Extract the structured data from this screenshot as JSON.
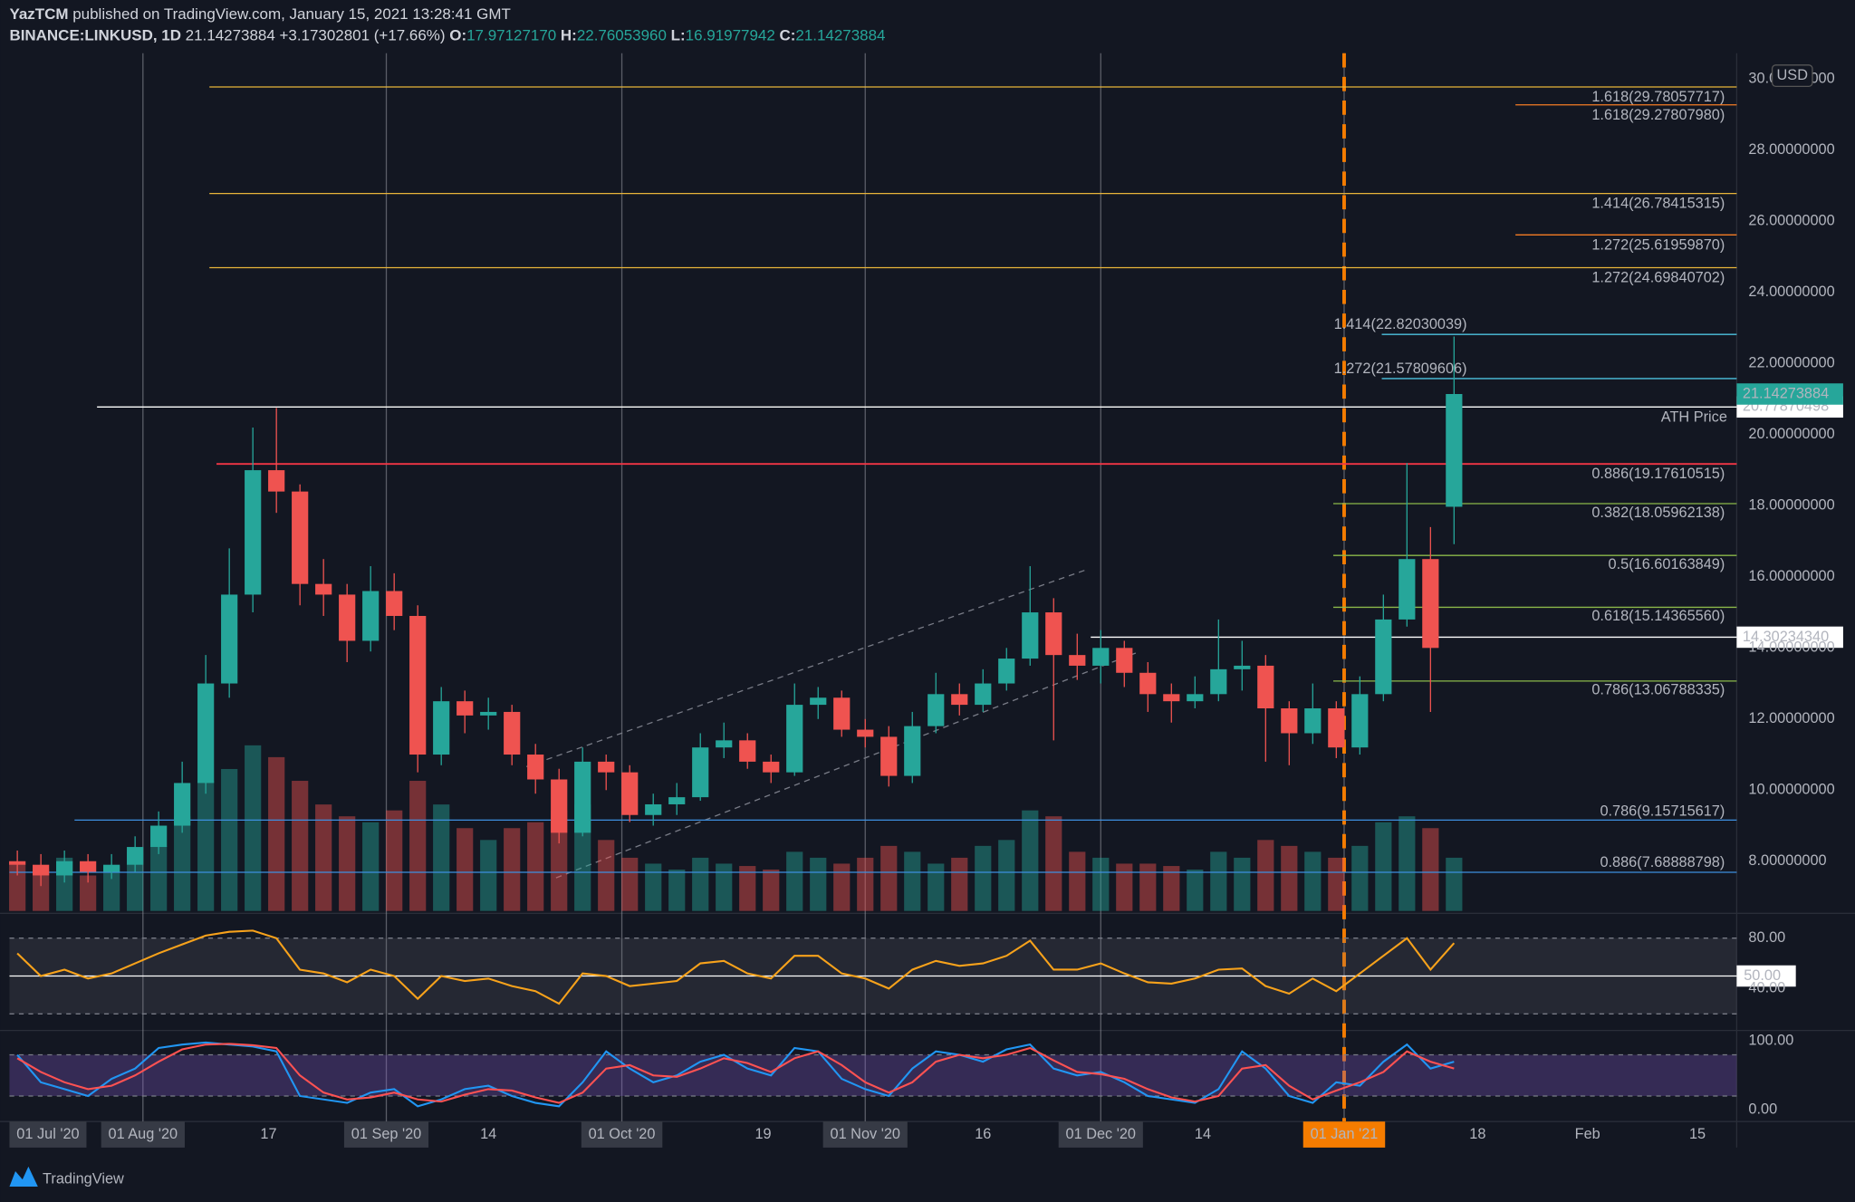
{
  "header": {
    "author": "YazTCM",
    "published": "published on TradingView.com, January 15, 2021 13:28:41 GMT",
    "symbol": "BINANCE:LINKUSD, 1D",
    "last": "21.14273884",
    "change": "+3.17302801 (+17.66%)",
    "o_label": "O:",
    "o": "17.97127170",
    "h_label": "H:",
    "h": "22.76053960",
    "l_label": "L:",
    "l": "16.91977942",
    "c_label": "C:",
    "c": "21.14273884"
  },
  "chart_data": {
    "type": "candlestick",
    "currency": "USD",
    "x": [
      "2020-07-16",
      "2020-07-19",
      "2020-07-22",
      "2020-07-25",
      "2020-07-28",
      "2020-07-31",
      "2020-08-03",
      "2020-08-06",
      "2020-08-09",
      "2020-08-12",
      "2020-08-15",
      "2020-08-18",
      "2020-08-21",
      "2020-08-24",
      "2020-08-27",
      "2020-08-30",
      "2020-09-02",
      "2020-09-05",
      "2020-09-08",
      "2020-09-11",
      "2020-09-14",
      "2020-09-17",
      "2020-09-20",
      "2020-09-23",
      "2020-09-26",
      "2020-09-29",
      "2020-10-02",
      "2020-10-05",
      "2020-10-08",
      "2020-10-11",
      "2020-10-14",
      "2020-10-17",
      "2020-10-20",
      "2020-10-23",
      "2020-10-26",
      "2020-10-29",
      "2020-11-01",
      "2020-11-04",
      "2020-11-07",
      "2020-11-10",
      "2020-11-13",
      "2020-11-16",
      "2020-11-19",
      "2020-11-22",
      "2020-11-25",
      "2020-11-28",
      "2020-12-01",
      "2020-12-04",
      "2020-12-07",
      "2020-12-10",
      "2020-12-13",
      "2020-12-16",
      "2020-12-19",
      "2020-12-22",
      "2020-12-25",
      "2020-12-28",
      "2020-12-31",
      "2021-01-03",
      "2021-01-06",
      "2021-01-09",
      "2021-01-12",
      "2021-01-15"
    ],
    "open": [
      8.0,
      7.9,
      7.6,
      8.0,
      7.7,
      7.9,
      8.4,
      9.0,
      10.2,
      13.0,
      15.5,
      19.0,
      18.4,
      15.8,
      15.5,
      14.2,
      15.6,
      14.9,
      11.0,
      12.5,
      12.1,
      12.2,
      11.0,
      10.3,
      8.8,
      10.8,
      10.5,
      9.3,
      9.6,
      9.8,
      11.2,
      11.4,
      10.8,
      10.5,
      12.4,
      12.6,
      11.7,
      11.5,
      10.4,
      11.8,
      12.7,
      12.4,
      13.0,
      13.7,
      15.0,
      13.8,
      13.5,
      14.0,
      13.3,
      12.7,
      12.5,
      12.7,
      13.4,
      13.5,
      12.3,
      11.6,
      12.3,
      11.2,
      12.7,
      14.8,
      16.5,
      17.9712717
    ],
    "high": [
      8.3,
      8.2,
      8.3,
      8.2,
      8.2,
      8.7,
      9.4,
      10.8,
      13.8,
      16.8,
      20.2,
      20.75,
      18.6,
      16.5,
      15.8,
      16.3,
      16.1,
      15.2,
      12.9,
      12.8,
      12.6,
      12.4,
      11.3,
      10.6,
      11.2,
      11.0,
      10.7,
      9.9,
      10.2,
      11.6,
      11.9,
      11.6,
      11.0,
      13.0,
      12.9,
      12.8,
      12.0,
      11.8,
      12.2,
      13.3,
      13.0,
      13.4,
      14.0,
      16.3,
      15.4,
      14.4,
      14.5,
      14.2,
      13.6,
      13.0,
      13.2,
      14.8,
      14.2,
      13.8,
      12.5,
      13.0,
      12.5,
      13.2,
      15.5,
      19.2,
      17.4,
      22.7605396
    ],
    "low": [
      7.6,
      7.3,
      7.4,
      7.4,
      7.5,
      7.7,
      8.2,
      8.8,
      9.9,
      12.6,
      15.0,
      17.8,
      15.2,
      14.9,
      13.6,
      13.9,
      14.5,
      10.5,
      10.7,
      11.6,
      11.7,
      10.7,
      9.9,
      8.5,
      8.7,
      10.0,
      9.1,
      9.0,
      9.3,
      9.7,
      10.9,
      10.6,
      10.2,
      10.4,
      12.0,
      11.5,
      11.2,
      10.1,
      10.2,
      11.6,
      12.1,
      12.2,
      12.8,
      13.5,
      11.4,
      13.1,
      13.0,
      12.9,
      12.2,
      11.9,
      12.3,
      12.5,
      12.8,
      10.8,
      10.7,
      11.3,
      10.9,
      11.0,
      12.5,
      14.6,
      12.2,
      16.91977942
    ],
    "close": [
      7.9,
      7.6,
      8.0,
      7.7,
      7.9,
      8.4,
      9.0,
      10.2,
      13.0,
      15.5,
      19.0,
      18.4,
      15.8,
      15.5,
      14.2,
      15.6,
      14.9,
      11.0,
      12.5,
      12.1,
      12.2,
      11.0,
      10.3,
      8.8,
      10.8,
      10.5,
      9.3,
      9.6,
      9.8,
      11.2,
      11.4,
      10.8,
      10.5,
      12.4,
      12.6,
      11.7,
      11.5,
      10.4,
      11.8,
      12.7,
      12.4,
      13.0,
      13.7,
      15.0,
      13.8,
      13.5,
      14.0,
      13.3,
      12.7,
      12.5,
      12.7,
      13.4,
      13.5,
      12.3,
      11.6,
      12.3,
      11.2,
      12.7,
      14.8,
      16.5,
      14.0,
      21.14273884
    ],
    "volume": [
      40,
      35,
      45,
      30,
      38,
      50,
      55,
      80,
      110,
      120,
      140,
      130,
      110,
      90,
      80,
      75,
      85,
      110,
      90,
      70,
      60,
      70,
      75,
      85,
      90,
      60,
      45,
      40,
      35,
      45,
      40,
      38,
      35,
      50,
      45,
      40,
      45,
      55,
      50,
      40,
      45,
      55,
      60,
      85,
      80,
      50,
      45,
      40,
      40,
      38,
      35,
      50,
      45,
      60,
      55,
      50,
      45,
      55,
      75,
      80,
      70,
      45
    ],
    "up_color": "#26a69a",
    "down_color": "#ef5350",
    "xlim": [
      "2020-07-15",
      "2021-02-20"
    ],
    "xticks": [
      {
        "value": "2020-08-01",
        "label": "01 Aug '20"
      },
      {
        "value": "2020-08-17",
        "label": "17"
      },
      {
        "value": "2020-09-01",
        "label": "01 Sep '20"
      },
      {
        "value": "2020-09-14",
        "label": "14"
      },
      {
        "value": "2020-10-01",
        "label": "01 Oct '20"
      },
      {
        "value": "2020-10-19",
        "label": "19"
      },
      {
        "value": "2020-11-01",
        "label": "01 Nov '20"
      },
      {
        "value": "2020-11-16",
        "label": "16"
      },
      {
        "value": "2020-12-01",
        "label": "01 Dec '20"
      },
      {
        "value": "2020-12-14",
        "label": "14"
      },
      {
        "value": "2021-01-01",
        "label": "01 Jan '21"
      },
      {
        "value": "2021-01-18",
        "label": "18"
      },
      {
        "value": "2021-02-01",
        "label": "Feb"
      },
      {
        "value": "2021-02-15",
        "label": "15"
      }
    ],
    "x_start_label": "01 Jul '20",
    "ylim": [
      6.6,
      30.73
    ],
    "yticks": [
      {
        "value": 8,
        "label": "8.00000000"
      },
      {
        "value": 10,
        "label": "10.00000000"
      },
      {
        "value": 12,
        "label": "12.00000000"
      },
      {
        "value": 14,
        "label": "14.00000000"
      },
      {
        "value": 16,
        "label": "16.00000000"
      },
      {
        "value": 18,
        "label": "18.00000000"
      },
      {
        "value": 20,
        "label": "20.00000000"
      },
      {
        "value": 22,
        "label": "22.00000000"
      },
      {
        "value": 24,
        "label": "24.00000000"
      },
      {
        "value": 26,
        "label": "26.00000000"
      },
      {
        "value": 28,
        "label": "28.00000000"
      },
      {
        "value": 30,
        "label": "30.00000000"
      }
    ],
    "last_price": 21.14273884,
    "marker_date": "2021-01-01",
    "marker_color": "#f57c00",
    "levels": [
      {
        "label": "1.618(29.78057717)",
        "value": 29.78057717,
        "color": "#e8b53a"
      },
      {
        "label": "1.618(29.27807980)",
        "value": 29.2780798,
        "color": "#f57c24"
      },
      {
        "label": "1.414(26.78415315)",
        "value": 26.78415315,
        "color": "#e8b53a"
      },
      {
        "label": "1.272(25.61959870)",
        "value": 25.6195987,
        "color": "#f57c24"
      },
      {
        "label": "1.272(24.69840702)",
        "value": 24.69840702,
        "color": "#e8b53a"
      },
      {
        "label": "1.414(22.82030039)",
        "value": 22.82030039,
        "color": "#4dc3e0"
      },
      {
        "label": "1.272(21.57809606)",
        "value": 21.57809606,
        "color": "#4dc3e0"
      },
      {
        "label": "ATH Price",
        "value": 20.77870498,
        "color": "#ffffff",
        "axis_label": "20.77870498"
      },
      {
        "label": "0.886(19.17610515)",
        "value": 19.17610515,
        "color": "#f23645"
      },
      {
        "label": "0.382(18.05962138)",
        "value": 18.05962138,
        "color": "#8bb84a"
      },
      {
        "label": "0.5(16.60163849)",
        "value": 16.60163849,
        "color": "#8bb84a"
      },
      {
        "label": "0.618(15.14365560)",
        "value": 15.1436556,
        "color": "#8bb84a"
      },
      {
        "value": 14.3023434,
        "color": "#ffffff",
        "axis_label": "14.30234340"
      },
      {
        "label": "0.786(13.06788335)",
        "value": 13.06788335,
        "color": "#8bb84a"
      },
      {
        "label": "0.786(9.15715617)",
        "value": 9.15715617,
        "color": "#3d8fe0"
      },
      {
        "label": "0.886(7.68888798)",
        "value": 7.68888798,
        "color": "#3d8fe0"
      }
    ],
    "rsi": {
      "values": [
        68,
        50,
        55,
        48,
        52,
        60,
        68,
        75,
        82,
        85,
        86,
        80,
        55,
        52,
        45,
        55,
        50,
        32,
        50,
        46,
        48,
        42,
        38,
        28,
        52,
        50,
        42,
        44,
        46,
        60,
        62,
        52,
        48,
        66,
        66,
        52,
        48,
        40,
        55,
        62,
        58,
        60,
        66,
        78,
        55,
        55,
        60,
        52,
        45,
        44,
        48,
        55,
        56,
        42,
        36,
        48,
        38,
        52,
        66,
        80,
        55,
        76
      ],
      "color": "#f7a21b",
      "ylim": [
        7.8,
        98.7
      ],
      "yticks": [
        {
          "value": 80,
          "label": "80.00"
        },
        {
          "value": 50,
          "label": "50.00"
        },
        {
          "value": 40,
          "label": "40.00"
        }
      ],
      "bands": [
        20,
        80
      ]
    },
    "stoch": {
      "series": [
        {
          "color": "#2196f3",
          "values": [
            80,
            40,
            30,
            20,
            45,
            60,
            90,
            95,
            98,
            95,
            92,
            85,
            20,
            15,
            10,
            25,
            30,
            5,
            15,
            30,
            35,
            20,
            10,
            5,
            40,
            85,
            60,
            40,
            50,
            70,
            80,
            60,
            50,
            90,
            85,
            45,
            30,
            20,
            60,
            85,
            80,
            70,
            88,
            95,
            60,
            50,
            55,
            40,
            20,
            15,
            10,
            30,
            85,
            60,
            20,
            10,
            40,
            35,
            70,
            95,
            60,
            70
          ]
        },
        {
          "color": "#ff5252",
          "values": [
            75,
            55,
            40,
            30,
            35,
            50,
            70,
            88,
            95,
            96,
            94,
            90,
            50,
            25,
            15,
            18,
            25,
            15,
            12,
            22,
            30,
            28,
            18,
            10,
            25,
            60,
            65,
            50,
            48,
            60,
            75,
            68,
            55,
            75,
            85,
            65,
            40,
            25,
            40,
            70,
            80,
            75,
            80,
            90,
            72,
            55,
            52,
            45,
            30,
            18,
            12,
            20,
            60,
            65,
            35,
            15,
            28,
            40,
            55,
            85,
            70,
            60
          ]
        }
      ],
      "ylim": [
        -17.2,
        113.8
      ],
      "yticks": [
        {
          "value": 100,
          "label": "100.00"
        },
        {
          "value": 0,
          "label": "0.00"
        }
      ],
      "bands": [
        20,
        80
      ]
    }
  },
  "footer": {
    "brand": "TradingView"
  }
}
